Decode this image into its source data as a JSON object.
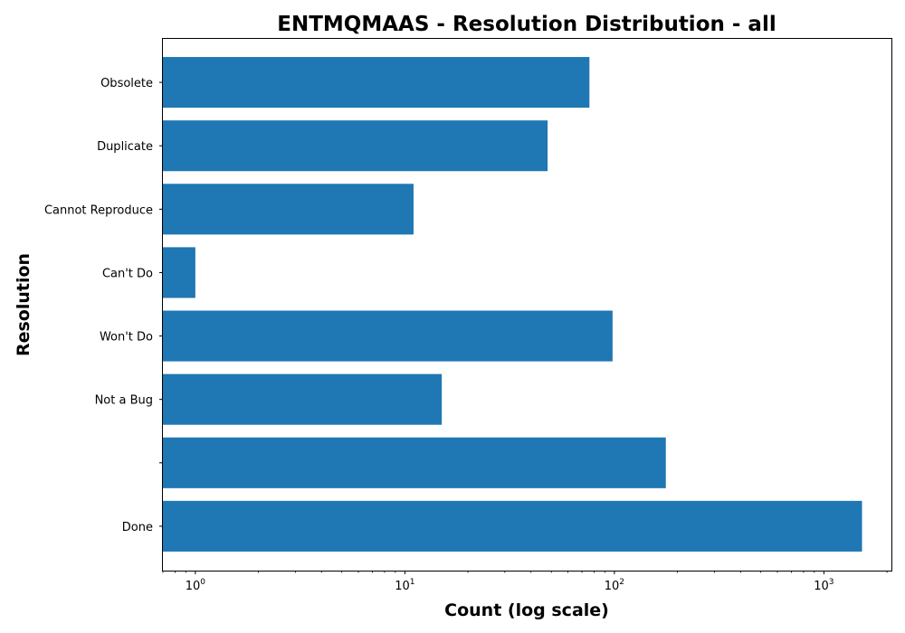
{
  "chart_data": {
    "type": "bar",
    "orientation": "horizontal",
    "title": "ENTMQMAAS - Resolution Distribution - all",
    "xlabel": "Count (log scale)",
    "ylabel": "Resolution",
    "x_scale": "log",
    "xlim": [
      0.7,
      2100
    ],
    "x_ticks": [
      {
        "base": "10",
        "exp": "0",
        "value": 1
      },
      {
        "base": "10",
        "exp": "1",
        "value": 10
      },
      {
        "base": "10",
        "exp": "2",
        "value": 100
      },
      {
        "base": "10",
        "exp": "3",
        "value": 1000
      }
    ],
    "grid": false,
    "bar_color": "#1f77b4",
    "categories": [
      "Done",
      "",
      "Not a Bug",
      "Won't Do",
      "Can't Do",
      "Cannot Reproduce",
      "Duplicate",
      "Obsolete"
    ],
    "values": [
      1520,
      176,
      15,
      98,
      1,
      11,
      48,
      76
    ]
  }
}
